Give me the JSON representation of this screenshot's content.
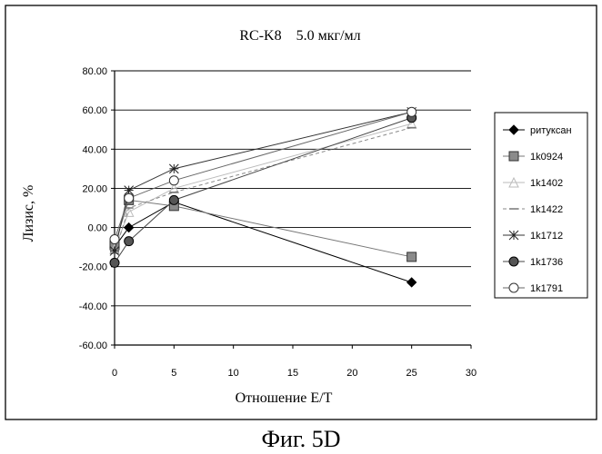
{
  "figure_caption": "Фиг. 5D",
  "chart_data": {
    "type": "line",
    "title": "RC-K8    5.0 мкг/мл",
    "xlabel": "Отношение E/T",
    "ylabel": "Лизис, %",
    "xlim": [
      0,
      30
    ],
    "ylim": [
      -60,
      80
    ],
    "x_ticks": [
      "0",
      "5",
      "10",
      "15",
      "20",
      "25",
      "30"
    ],
    "y_ticks": [
      "-60.00",
      "-40.00",
      "-20.00",
      "0.00",
      "20.00",
      "40.00",
      "60.00",
      "80.00"
    ],
    "grid": "horizontal",
    "legend_position": "right",
    "series": [
      {
        "name": "ритуксан",
        "marker": "diamond",
        "color": "#000000",
        "line_style": "solid",
        "points": [
          [
            0,
            -10
          ],
          [
            1.2,
            0
          ],
          [
            5,
            13
          ],
          [
            25,
            -28
          ]
        ]
      },
      {
        "name": "1k0924",
        "marker": "square",
        "color": "#777777",
        "line_style": "solid",
        "points": [
          [
            0,
            -9
          ],
          [
            1.2,
            14
          ],
          [
            5,
            11
          ],
          [
            25,
            -15
          ]
        ]
      },
      {
        "name": "1k1402",
        "marker": "triangle",
        "color": "#bbbbbb",
        "line_style": "solid",
        "points": [
          [
            0,
            -11
          ],
          [
            1.2,
            8
          ],
          [
            5,
            20
          ],
          [
            25,
            53
          ]
        ]
      },
      {
        "name": "1k1422",
        "marker": "dash",
        "color": "#888888",
        "line_style": "dashed",
        "points": [
          [
            0,
            -13
          ],
          [
            1.2,
            10
          ],
          [
            5,
            18
          ],
          [
            25,
            51
          ]
        ]
      },
      {
        "name": "1k1712",
        "marker": "star",
        "color": "#333333",
        "line_style": "solid",
        "points": [
          [
            0,
            -12
          ],
          [
            1.2,
            19
          ],
          [
            5,
            30
          ],
          [
            25,
            59
          ]
        ]
      },
      {
        "name": "1k1736",
        "marker": "filled-circle",
        "color": "#444444",
        "line_style": "solid",
        "points": [
          [
            0,
            -18
          ],
          [
            1.2,
            -7
          ],
          [
            5,
            14
          ],
          [
            25,
            56
          ]
        ]
      },
      {
        "name": "1k1791",
        "marker": "open-circle",
        "color": "#666666",
        "line_style": "solid",
        "points": [
          [
            0,
            -6
          ],
          [
            1.2,
            15
          ],
          [
            5,
            24
          ],
          [
            25,
            59
          ]
        ]
      }
    ]
  }
}
